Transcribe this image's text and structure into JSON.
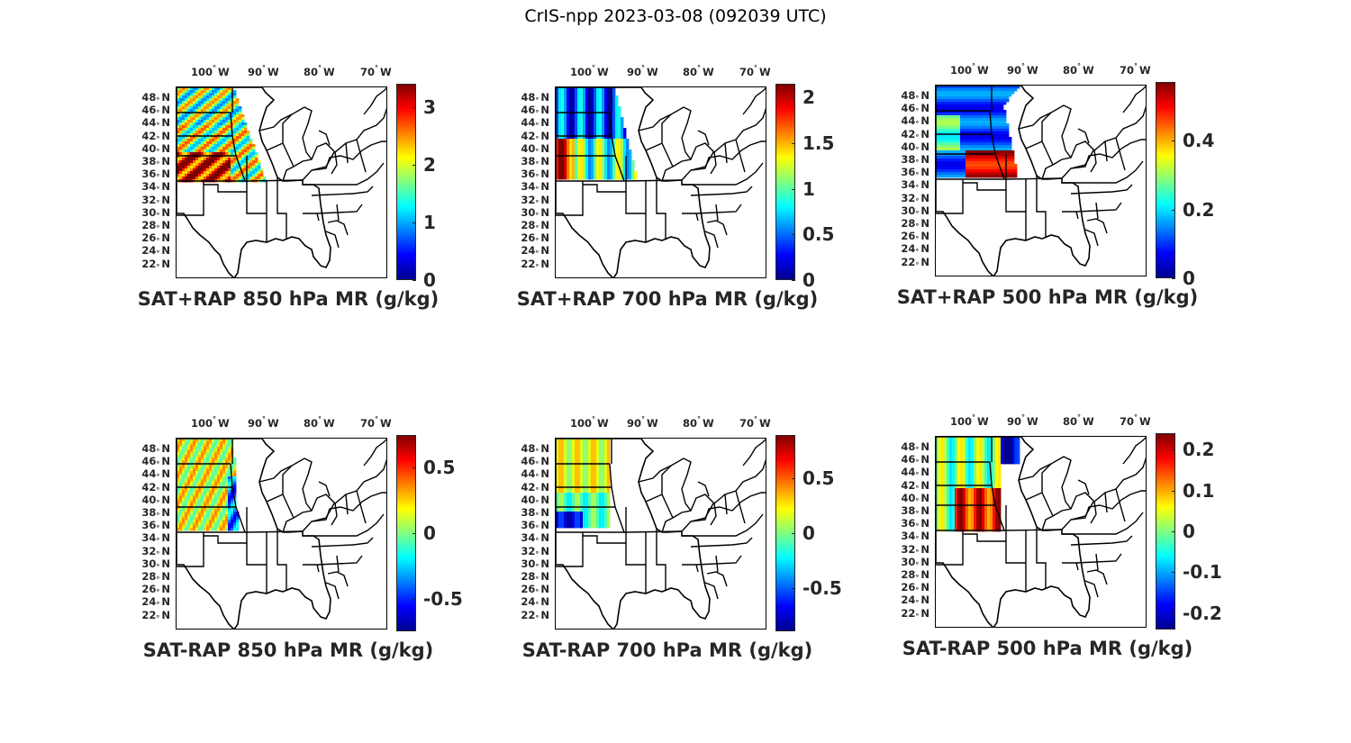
{
  "title": "CrIS-npp 2023-03-08 (092039 UTC)",
  "lon_labels": [
    "100",
    "90",
    "80",
    "70"
  ],
  "lon_hemisphere": "W",
  "lat_labels": [
    "48",
    "46",
    "44",
    "42",
    "40",
    "38",
    "36",
    "34",
    "32",
    "30",
    "28",
    "26",
    "24",
    "22"
  ],
  "lat_hemisphere": "N",
  "degree_symbol": "°",
  "panels": [
    {
      "subtitle": "SAT+RAP 850 hPa MR (g/kg)",
      "ticks": [
        "3",
        "2",
        "1",
        "0"
      ],
      "clim": [
        0,
        3.4
      ],
      "tick_values": [
        3,
        2,
        1,
        0
      ]
    },
    {
      "subtitle": "SAT+RAP 700 hPa MR (g/kg)",
      "ticks": [
        "2",
        "1.5",
        "1",
        "0.5",
        "0"
      ],
      "clim": [
        0,
        2.15
      ],
      "tick_values": [
        2,
        1.5,
        1,
        0.5,
        0
      ]
    },
    {
      "subtitle": "SAT+RAP 500 hPa MR (g/kg)",
      "ticks": [
        "0.4",
        "0.2",
        "0"
      ],
      "clim": [
        0,
        0.57
      ],
      "tick_values": [
        0.4,
        0.2,
        0
      ]
    },
    {
      "subtitle": "SAT-RAP 850 hPa MR (g/kg)",
      "ticks": [
        "0.5",
        "0",
        "-0.5"
      ],
      "clim": [
        -0.75,
        0.75
      ],
      "tick_values": [
        0.5,
        0,
        -0.5
      ]
    },
    {
      "subtitle": "SAT-RAP 700 hPa MR (g/kg)",
      "ticks": [
        "0.5",
        "0",
        "-0.5"
      ],
      "clim": [
        -0.9,
        0.9
      ],
      "tick_values": [
        0.5,
        0,
        -0.5
      ]
    },
    {
      "subtitle": "SAT-RAP 500 hPa MR (g/kg)",
      "ticks": [
        "0.2",
        "0.1",
        "0",
        "-0.1",
        "-0.2"
      ],
      "clim": [
        -0.24,
        0.24
      ],
      "tick_values": [
        0.2,
        0.1,
        0,
        -0.1,
        -0.2
      ]
    }
  ],
  "colors": {
    "outline": "#000000",
    "text": "#262626"
  }
}
